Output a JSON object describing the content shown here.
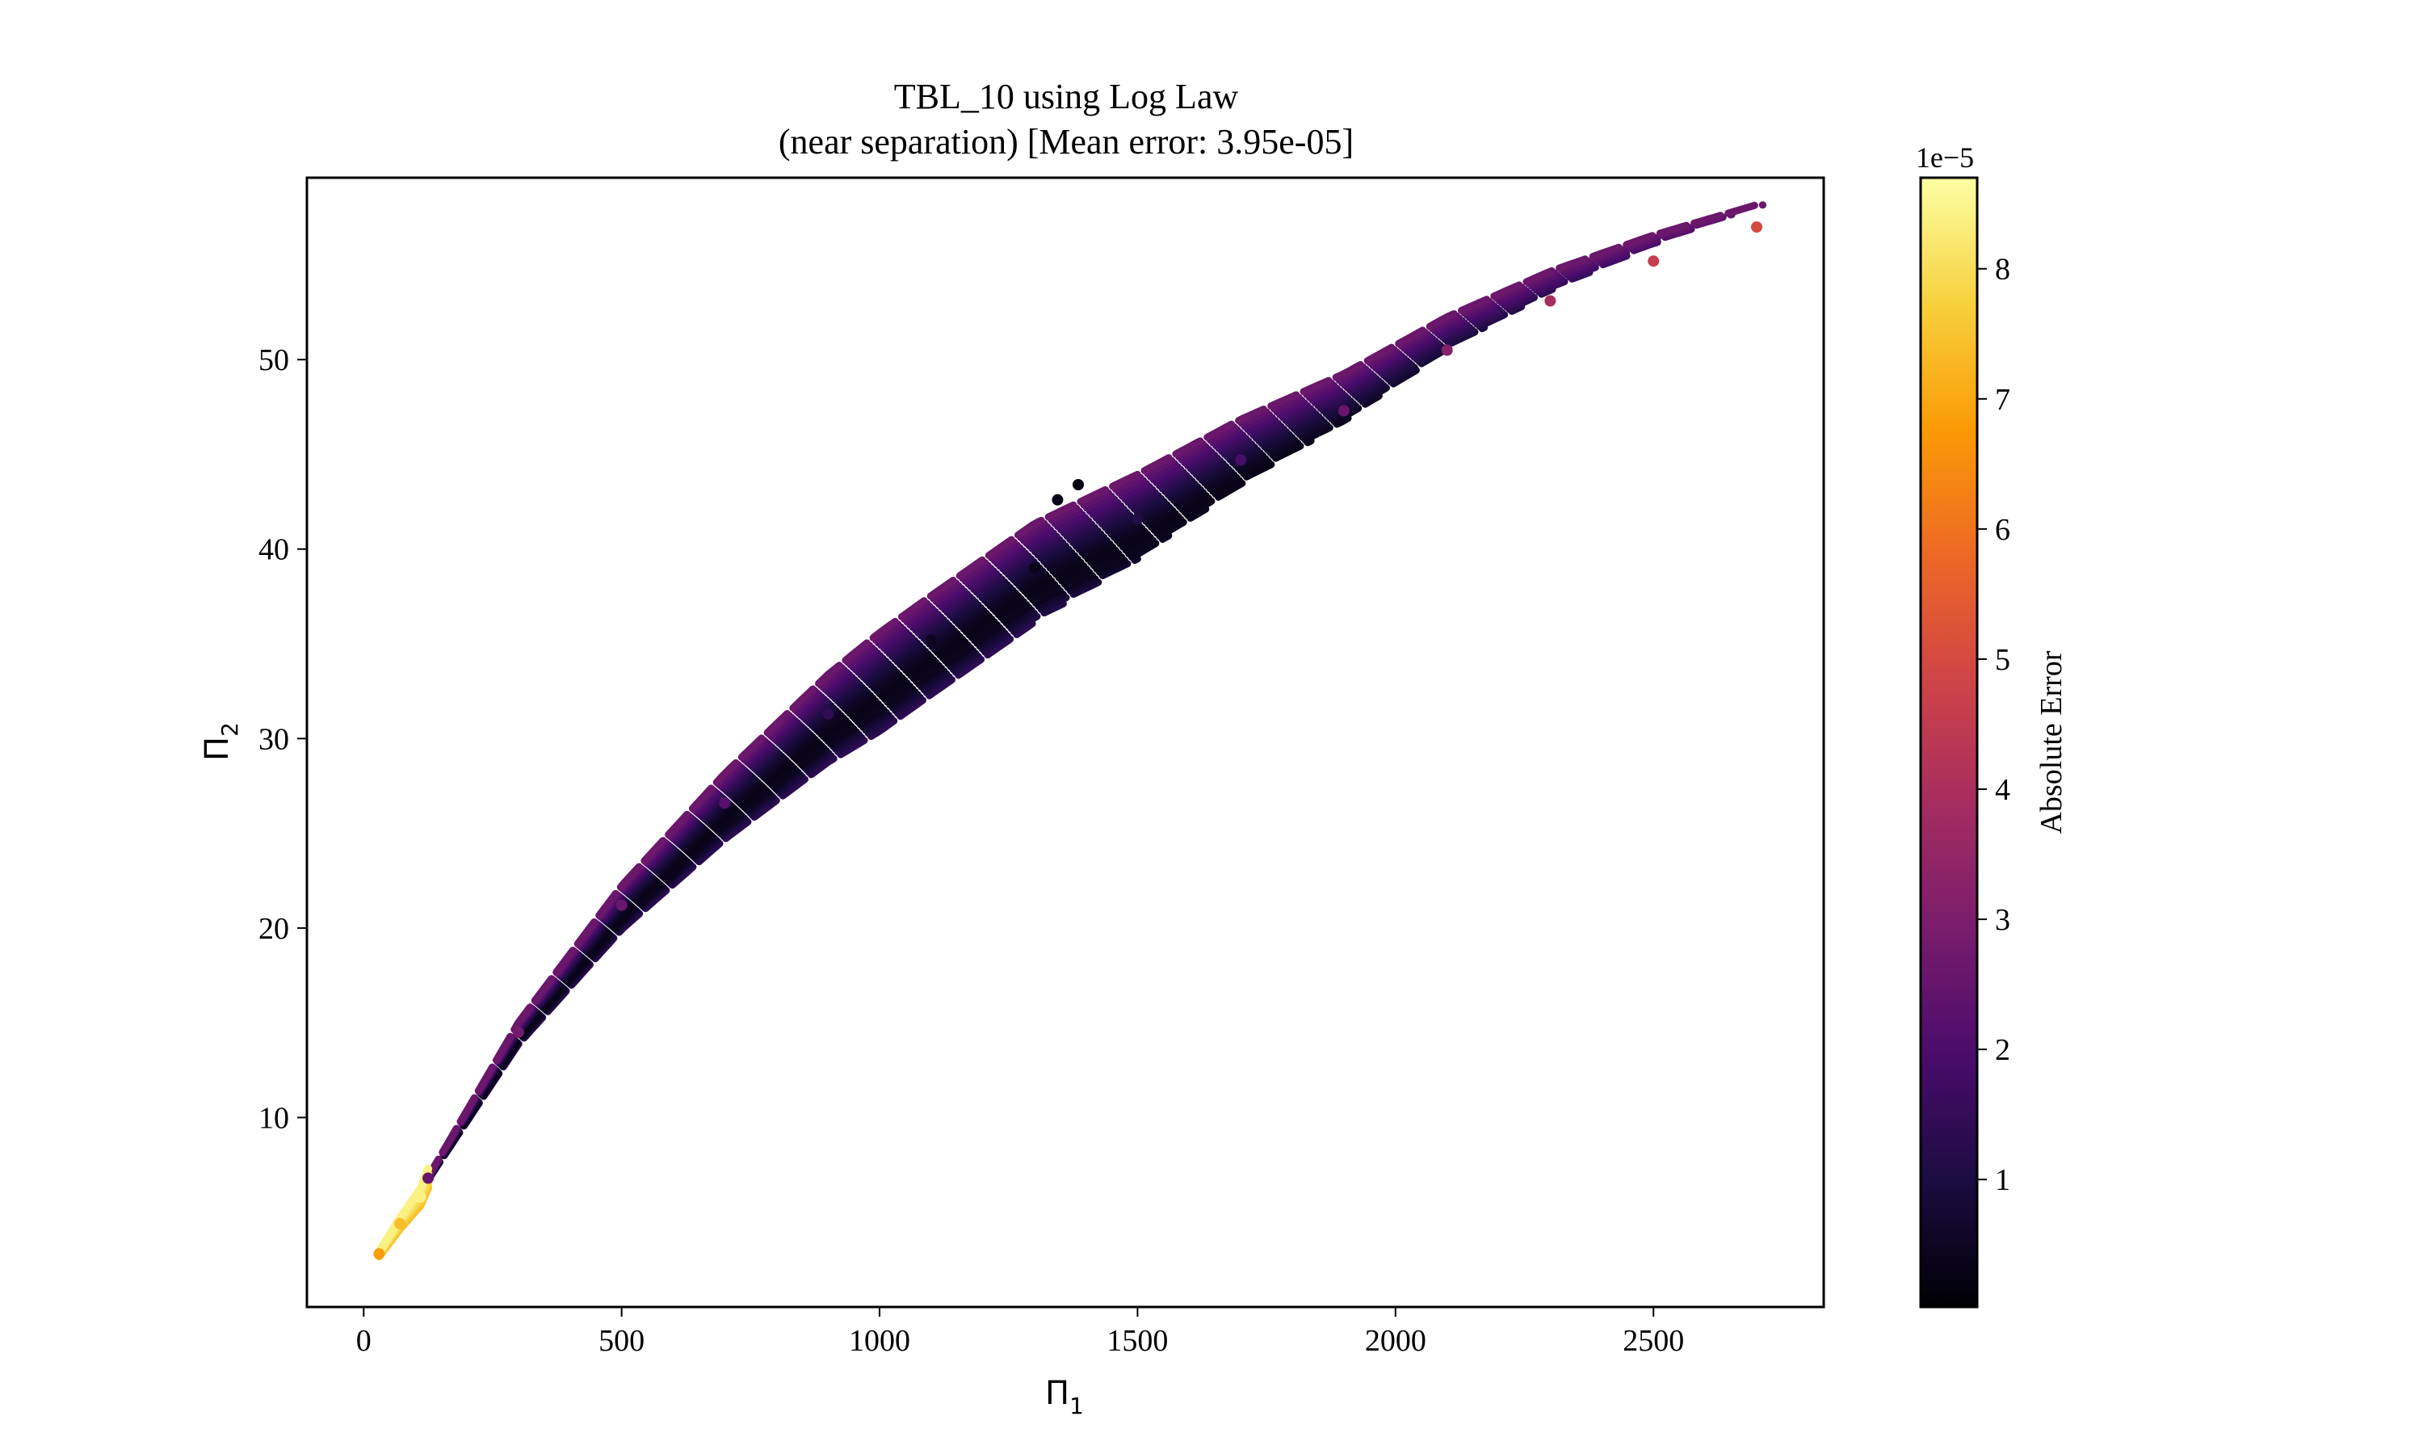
{
  "chart_data": {
    "type": "scatter",
    "title_line1": "TBL_10 using Log Law",
    "title_line2": "(near separation) [Mean error: 3.95e-05]",
    "xlabel": "Π",
    "xlabel_sub": "1",
    "ylabel": "Π",
    "ylabel_sub": "2",
    "xlim": [
      -110,
      2830
    ],
    "ylim": [
      0,
      59.6
    ],
    "xticks": [
      0,
      500,
      1000,
      1500,
      2000,
      2500
    ],
    "xtick_labels": [
      "0",
      "500",
      "1000",
      "1500",
      "2000",
      "2500"
    ],
    "yticks": [
      10,
      20,
      30,
      40,
      50
    ],
    "ytick_labels": [
      "10",
      "20",
      "30",
      "40",
      "50"
    ],
    "grid": false,
    "colorbar": {
      "label": "Absolute Error",
      "multiplier_label": "1e−5",
      "range": [
        0.02,
        8.7
      ],
      "ticks": [
        1,
        2,
        3,
        4,
        5,
        6,
        7,
        8
      ],
      "tick_labels": [
        "1",
        "2",
        "3",
        "4",
        "5",
        "6",
        "7",
        "8"
      ],
      "colormap": "inferno",
      "colormap_stops": [
        "#000004",
        "#1b0c41",
        "#4a0c6b",
        "#781c6d",
        "#a52c60",
        "#cf4446",
        "#ed6925",
        "#fb9b06",
        "#f7d13d",
        "#fcffa4"
      ]
    },
    "series": [
      {
        "points": [
          {
            "x": 30,
            "y": 2.8,
            "err": 6.8
          },
          {
            "x": 70,
            "y": 4.4,
            "err": 7.4
          },
          {
            "x": 110,
            "y": 5.8,
            "err": 8.4
          },
          {
            "x": 125,
            "y": 6.8,
            "err": 2.5
          },
          {
            "x": 300,
            "y": 14.5,
            "err": 2.8
          },
          {
            "x": 500,
            "y": 21.2,
            "err": 2.6
          },
          {
            "x": 700,
            "y": 26.6,
            "err": 2.2
          },
          {
            "x": 900,
            "y": 31.3,
            "err": 1.4
          },
          {
            "x": 1100,
            "y": 35.2,
            "err": 0.5
          },
          {
            "x": 1300,
            "y": 39.0,
            "err": 0.4
          },
          {
            "x": 1500,
            "y": 41.6,
            "err": 1.1
          },
          {
            "x": 1700,
            "y": 44.7,
            "err": 1.9
          },
          {
            "x": 1900,
            "y": 47.3,
            "err": 2.6
          },
          {
            "x": 2100,
            "y": 50.5,
            "err": 3.2
          },
          {
            "x": 2300,
            "y": 53.1,
            "err": 3.9
          },
          {
            "x": 2500,
            "y": 55.2,
            "err": 4.6
          },
          {
            "x": 2700,
            "y": 57.0,
            "err": 5.0
          },
          {
            "x": 1345,
            "y": 42.6,
            "err": 0.3
          },
          {
            "x": 1385,
            "y": 43.4,
            "err": 0.2
          }
        ]
      }
    ]
  }
}
